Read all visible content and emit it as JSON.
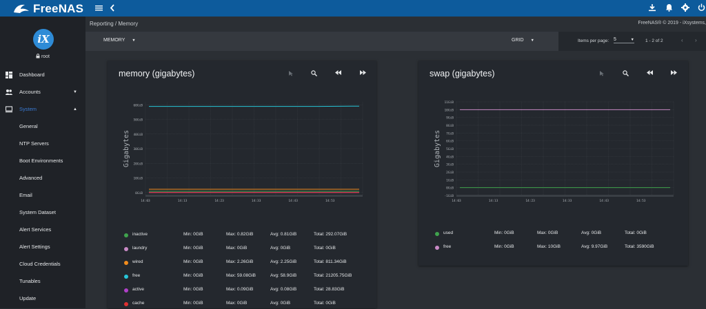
{
  "app": {
    "name": "FreeNAS"
  },
  "topbar": {
    "icons": [
      "menu-icon",
      "chevron-left-icon",
      "download-icon",
      "bell-icon",
      "gear-icon",
      "power-icon"
    ]
  },
  "sidebar": {
    "logo_text": "iX",
    "user": "root",
    "items": [
      {
        "label": "Dashboard",
        "icon": "dashboard-icon"
      },
      {
        "label": "Accounts",
        "icon": "people-icon"
      },
      {
        "label": "System",
        "icon": "computer-icon"
      },
      {
        "label": "General"
      },
      {
        "label": "NTP Servers"
      },
      {
        "label": "Boot Environments"
      },
      {
        "label": "Advanced"
      },
      {
        "label": "Email"
      },
      {
        "label": "System Dataset"
      },
      {
        "label": "Alert Services"
      },
      {
        "label": "Alert Settings"
      },
      {
        "label": "Cloud Credentials"
      },
      {
        "label": "Tunables"
      },
      {
        "label": "Update"
      }
    ]
  },
  "breadcrumb": {
    "parent": "Reporting",
    "sep": "/",
    "current": "Memory"
  },
  "copyright": "FreeNAS® © 2019 - iXsystems,",
  "toolbar": {
    "report_select": "MEMORY",
    "layout_select": "GRID"
  },
  "pager": {
    "label": "Items per page:",
    "value": "5",
    "range": "1 - 2 of 2"
  },
  "cards": [
    {
      "title": "memory (gigabytes)",
      "legend": [
        {
          "name": "inactive",
          "color": "#3fa34d",
          "min": "Min: 0GiB",
          "max": "Max: 0.82GiB",
          "avg": "Avg: 0.81GiB",
          "total": "Total: 292.07GiB"
        },
        {
          "name": "laundry",
          "color": "#c98ac6",
          "min": "Min: 0GiB",
          "max": "Max: 0GiB",
          "avg": "Avg: 0GiB",
          "total": "Total: 0GiB"
        },
        {
          "name": "wired",
          "color": "#f28c1c",
          "min": "Min: 0GiB",
          "max": "Max: 2.26GiB",
          "avg": "Avg: 2.25GiB",
          "total": "Total: 811.34GiB"
        },
        {
          "name": "free",
          "color": "#27c6d8",
          "min": "Min: 0GiB",
          "max": "Max: 59.08GiB",
          "avg": "Avg: 58.9GiB",
          "total": "Total: 21205.75GiB"
        },
        {
          "name": "active",
          "color": "#b040c8",
          "min": "Min: 0GiB",
          "max": "Max: 0.09GiB",
          "avg": "Avg: 0.08GiB",
          "total": "Total: 28.83GiB"
        },
        {
          "name": "cache",
          "color": "#e03030",
          "min": "Min: 0GiB",
          "max": "Max: 0GiB",
          "avg": "Avg: 0GiB",
          "total": "Total: 0GiB"
        }
      ]
    },
    {
      "title": "swap (gigabytes)",
      "legend": [
        {
          "name": "used",
          "color": "#3fa34d",
          "min": "Min: 0GiB",
          "max": "Max: 0GiB",
          "avg": "Avg: 0GiB",
          "total": "Total: 0GiB"
        },
        {
          "name": "free",
          "color": "#c98ac6",
          "min": "Min: 0GiB",
          "max": "Max: 10GiB",
          "avg": "Avg: 9.97GiB",
          "total": "Total: 3590GiB"
        }
      ]
    }
  ],
  "chart_data": [
    {
      "type": "line",
      "title": "memory (gigabytes)",
      "ylabel": "Gigabytes",
      "xlabel": "",
      "x_ticks": [
        "14:03",
        "14:13",
        "14:23",
        "14:33",
        "14:43",
        "14:53"
      ],
      "y_ticks": [
        "60GiB",
        "50GiB",
        "40GiB",
        "30GiB",
        "20GiB",
        "10GiB",
        "0GiB"
      ],
      "ylim": [
        -2,
        62
      ],
      "grid": true,
      "series": [
        {
          "name": "inactive",
          "color": "#3fa34d",
          "values": [
            0.81,
            0.81,
            0.81,
            0.81,
            0.81,
            0.82
          ]
        },
        {
          "name": "laundry",
          "color": "#c98ac6",
          "values": [
            0,
            0,
            0,
            0,
            0,
            0
          ]
        },
        {
          "name": "wired",
          "color": "#f28c1c",
          "values": [
            2.25,
            2.25,
            2.25,
            2.25,
            2.26,
            2.26
          ]
        },
        {
          "name": "free",
          "color": "#27c6d8",
          "values": [
            58.9,
            58.9,
            58.9,
            58.9,
            58.9,
            59.08
          ]
        },
        {
          "name": "active",
          "color": "#b040c8",
          "values": [
            0.08,
            0.08,
            0.08,
            0.09,
            0.08,
            0.08
          ]
        },
        {
          "name": "cache",
          "color": "#e03030",
          "values": [
            0,
            0,
            0,
            0,
            0,
            0
          ]
        }
      ]
    },
    {
      "type": "line",
      "title": "swap (gigabytes)",
      "ylabel": "Gigabytes",
      "xlabel": "",
      "x_ticks": [
        "14:03",
        "14:13",
        "14:23",
        "14:33",
        "14:43",
        "14:53"
      ],
      "y_ticks": [
        "11GiB",
        "10GiB",
        "9GiB",
        "8GiB",
        "7GiB",
        "6GiB",
        "5GiB",
        "4GiB",
        "3GiB",
        "2GiB",
        "1GiB",
        "0GiB",
        "-1GiB"
      ],
      "ylim": [
        -1,
        11
      ],
      "grid": true,
      "series": [
        {
          "name": "used",
          "color": "#3fa34d",
          "values": [
            0,
            0,
            0,
            0,
            0,
            0
          ]
        },
        {
          "name": "free",
          "color": "#c98ac6",
          "values": [
            10,
            10,
            10,
            10,
            10,
            10
          ]
        }
      ]
    }
  ]
}
